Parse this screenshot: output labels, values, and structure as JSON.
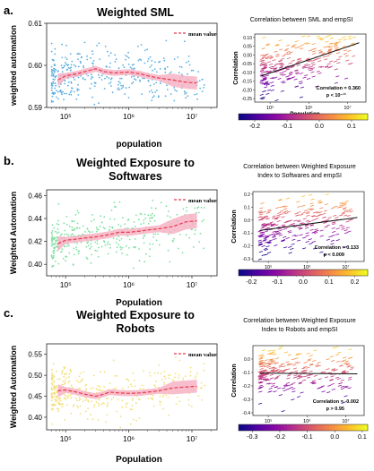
{
  "panels": [
    {
      "letter": "a.",
      "left": {
        "title_lines": [
          "Weighted SML"
        ],
        "ylabel": "weighted automation",
        "xlabel": "population",
        "legend": "mean value",
        "yticks": [
          "0.61",
          "0.60",
          "0.59"
        ],
        "xticks": [
          "10⁵",
          "10⁶",
          "10⁷"
        ]
      },
      "right": {
        "title_lines": [
          "Correlation between SML and empSI"
        ],
        "ylabel": "Correlation",
        "xlabel": "Population",
        "yticks": [
          "0.10",
          "0.05",
          "0.00",
          "-0.05",
          "-0.10",
          "-0.15",
          "-0.20",
          "-0.25"
        ],
        "xticks": [
          "10⁵",
          "10⁶",
          "10⁷"
        ],
        "annot": [
          "Correlation = 0.360",
          "p < 10⁻¹¹"
        ],
        "cbar_ticks": [
          "-0.2",
          "-0.1",
          "0.0",
          "0.1"
        ]
      }
    },
    {
      "letter": "b.",
      "left": {
        "title_lines": [
          "Weighted Exposure to",
          "Softwares"
        ],
        "ylabel": "Weighted Automation",
        "xlabel": "Population",
        "legend": "mean value",
        "yticks": [
          "0.46",
          "0.44",
          "0.42",
          "0.40"
        ],
        "xticks": [
          "10⁵",
          "10⁶",
          "10⁷"
        ]
      },
      "right": {
        "title_lines": [
          "Correlation between Weighted Exposure",
          "Index to Softwares and empSI"
        ],
        "ylabel": "Correlation",
        "xlabel": "Population",
        "yticks": [
          "0.2",
          "0.1",
          "0.0",
          "-0.1",
          "-0.2",
          "-0.3"
        ],
        "xticks": [
          "10⁵",
          "10⁶",
          "10⁷"
        ],
        "annot": [
          "Correlation = 0.133",
          "p < 0.009"
        ],
        "cbar_ticks": [
          "-0.2",
          "-0.1",
          "0.0",
          "0.1",
          "0.2"
        ]
      }
    },
    {
      "letter": "c.",
      "left": {
        "title_lines": [
          "Weighted Exposure to",
          "Robots"
        ],
        "ylabel": "Weighted Automation",
        "xlabel": "Population",
        "legend": "mean value",
        "yticks": [
          "0.55",
          "0.50",
          "0.45",
          "0.40"
        ],
        "xticks": [
          "10⁵",
          "10⁶",
          "10⁷"
        ]
      },
      "right": {
        "title_lines": [
          "Correlation between Weighted Exposure",
          "Index to Robots and empSI"
        ],
        "ylabel": "Correlation",
        "xlabel": "Population",
        "yticks": [
          "0.0",
          "-0.1",
          "-0.2",
          "-0.3",
          "-0.4"
        ],
        "xticks": [
          "10⁵",
          "10⁶",
          "10⁷"
        ],
        "annot": [
          "Correlation = -0.002",
          "p > 0.95"
        ],
        "cbar_ticks": [
          "-0.3",
          "-0.2",
          "-0.1",
          "0.0",
          "0.1"
        ]
      }
    }
  ],
  "colors": {
    "scatter_a": "#5aaee0",
    "scatter_b": "#7ee0a0",
    "scatter_c": "#f3df7a",
    "mean_line": "#e8394f",
    "band": "#f7b3c4"
  },
  "chart_data": [
    {
      "type": "scatter",
      "panel": "a-left",
      "xscale": "log",
      "xlim": [
        50000,
        25000000
      ],
      "ylim": [
        0.59,
        0.61
      ],
      "series": [
        {
          "name": "mean value",
          "x": [
            75000,
            100000,
            150000,
            200000,
            300000,
            400000,
            600000,
            1000000,
            1500000,
            2000000,
            3000000,
            5000000,
            8000000,
            12000000
          ],
          "y": [
            0.5965,
            0.5975,
            0.598,
            0.5985,
            0.5992,
            0.5985,
            0.5982,
            0.5984,
            0.598,
            0.5975,
            0.597,
            0.5965,
            0.596,
            0.5958
          ]
        }
      ]
    },
    {
      "type": "scatter",
      "panel": "a-right",
      "xscale": "log",
      "ylim": [
        -0.27,
        0.12
      ],
      "trend": {
        "x": [
          60000,
          20000000
        ],
        "y": [
          -0.12,
          0.07
        ]
      },
      "colorbar_range": [
        -0.25,
        0.15
      ]
    },
    {
      "type": "scatter",
      "panel": "b-left",
      "xscale": "log",
      "xlim": [
        50000,
        25000000
      ],
      "ylim": [
        0.39,
        0.465
      ],
      "series": [
        {
          "name": "mean value",
          "x": [
            75000,
            100000,
            150000,
            200000,
            300000,
            500000,
            700000,
            1000000,
            1500000,
            2000000,
            3000000,
            5000000,
            8000000,
            12000000
          ],
          "y": [
            0.418,
            0.421,
            0.422,
            0.423,
            0.424,
            0.426,
            0.428,
            0.428,
            0.429,
            0.43,
            0.431,
            0.433,
            0.437,
            0.438
          ]
        }
      ]
    },
    {
      "type": "scatter",
      "panel": "b-right",
      "xscale": "log",
      "ylim": [
        -0.32,
        0.22
      ],
      "trend": {
        "x": [
          60000,
          20000000
        ],
        "y": [
          -0.08,
          0.02
        ]
      },
      "colorbar_range": [
        -0.25,
        0.25
      ]
    },
    {
      "type": "scatter",
      "panel": "c-left",
      "xscale": "log",
      "xlim": [
        50000,
        25000000
      ],
      "ylim": [
        0.37,
        0.575
      ],
      "series": [
        {
          "name": "mean value",
          "x": [
            75000,
            100000,
            150000,
            200000,
            300000,
            400000,
            500000,
            700000,
            1000000,
            1500000,
            2000000,
            3000000,
            5000000,
            8000000,
            12000000
          ],
          "y": [
            0.463,
            0.465,
            0.46,
            0.455,
            0.45,
            0.455,
            0.46,
            0.458,
            0.457,
            0.458,
            0.46,
            0.463,
            0.47,
            0.472,
            0.474
          ]
        }
      ]
    },
    {
      "type": "scatter",
      "panel": "c-right",
      "xscale": "log",
      "ylim": [
        -0.42,
        0.1
      ],
      "trend": {
        "x": [
          60000,
          20000000
        ],
        "y": [
          -0.105,
          -0.11
        ]
      },
      "colorbar_range": [
        -0.35,
        0.12
      ]
    }
  ]
}
